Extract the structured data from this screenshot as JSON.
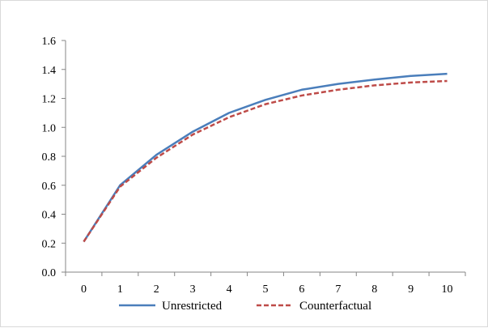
{
  "chart_data": {
    "type": "line",
    "title": "",
    "xlabel": "",
    "ylabel": "",
    "x": [
      0,
      1,
      2,
      3,
      4,
      5,
      6,
      7,
      8,
      9,
      10
    ],
    "x_tick_labels": [
      "0",
      "1",
      "2",
      "3",
      "4",
      "5",
      "6",
      "7",
      "8",
      "9",
      "10"
    ],
    "ylim": [
      0.0,
      1.6
    ],
    "y_tick_labels": [
      "0.0",
      "0.2",
      "0.4",
      "0.6",
      "0.8",
      "1.0",
      "1.2",
      "1.4",
      "1.6"
    ],
    "grid": false,
    "legend_position": "bottom",
    "series": [
      {
        "name": "Unrestricted",
        "color": "#4a7ebb",
        "dash": "solid",
        "values": [
          0.21,
          0.6,
          0.81,
          0.97,
          1.1,
          1.19,
          1.26,
          1.3,
          1.33,
          1.355,
          1.37
        ]
      },
      {
        "name": "Counterfactual",
        "color": "#be4b48",
        "dash": "dashed",
        "values": [
          0.21,
          0.59,
          0.79,
          0.95,
          1.07,
          1.16,
          1.22,
          1.26,
          1.29,
          1.31,
          1.32
        ]
      }
    ]
  }
}
